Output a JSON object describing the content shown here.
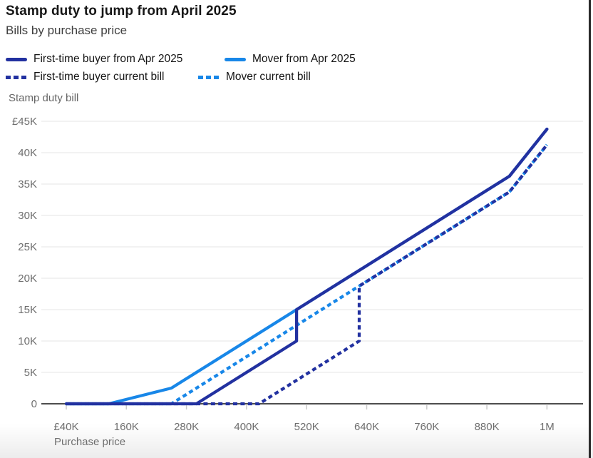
{
  "header": {
    "title": "Stamp duty to jump from April 2025",
    "subtitle": "Bills by purchase price"
  },
  "legend": [
    {
      "label": "First-time buyer from Apr 2025",
      "style": "solid",
      "color_key": "dark_blue"
    },
    {
      "label": "Mover from Apr 2025",
      "style": "solid",
      "color_key": "light_blue"
    },
    {
      "label": "First-time buyer current bill",
      "style": "dotted",
      "color_key": "dark_blue"
    },
    {
      "label": "Mover current bill",
      "style": "dotted",
      "color_key": "light_blue"
    }
  ],
  "colors": {
    "dark_blue": "#2231a0",
    "light_blue": "#1887e8",
    "grid": "#e6e6e6",
    "zero_axis": "#4d4d4d",
    "tick": "#c9c9c9",
    "axis_text": "#6e6e6e",
    "title_text": "#161616",
    "subtitle_text": "#3f3f3f",
    "window_border": "#2b2b2b"
  },
  "chart_data": {
    "type": "line",
    "title": "Stamp duty to jump from April 2025",
    "subtitle": "Bills by purchase price",
    "xlabel": "Purchase price",
    "ylabel": "Stamp duty bill",
    "x_unit": "GBP thousands (purchase price)",
    "y_unit": "GBP thousands (stamp duty bill)",
    "xlim": [
      40,
      1000
    ],
    "ylim": [
      0,
      45
    ],
    "grid": "horizontal",
    "legend_position": "top",
    "x_ticks": [
      {
        "value": 40,
        "label": "£40K"
      },
      {
        "value": 160,
        "label": "160K"
      },
      {
        "value": 280,
        "label": "280K"
      },
      {
        "value": 400,
        "label": "400K"
      },
      {
        "value": 520,
        "label": "520K"
      },
      {
        "value": 640,
        "label": "640K"
      },
      {
        "value": 760,
        "label": "760K"
      },
      {
        "value": 880,
        "label": "880K"
      },
      {
        "value": 1000,
        "label": "1M"
      }
    ],
    "y_ticks": [
      {
        "value": 0,
        "label": "0"
      },
      {
        "value": 5,
        "label": "5K"
      },
      {
        "value": 10,
        "label": "10K"
      },
      {
        "value": 15,
        "label": "15K"
      },
      {
        "value": 20,
        "label": "20K"
      },
      {
        "value": 25,
        "label": "25K"
      },
      {
        "value": 30,
        "label": "30K"
      },
      {
        "value": 35,
        "label": "35K"
      },
      {
        "value": 40,
        "label": "40K"
      },
      {
        "value": 45,
        "label": "£45K"
      }
    ],
    "series": [
      {
        "name": "Mover current bill",
        "style": "dotted",
        "color_key": "light_blue",
        "dash_offset": 0,
        "points": [
          [
            40,
            0
          ],
          [
            250,
            0
          ],
          [
            925,
            33.75
          ],
          [
            1000,
            41.25
          ]
        ]
      },
      {
        "name": "First-time buyer current bill",
        "style": "dotted",
        "color_key": "dark_blue",
        "dash_offset": 5.2,
        "points": [
          [
            40,
            0
          ],
          [
            425,
            0
          ],
          [
            625,
            10
          ],
          [
            625,
            18.75
          ],
          [
            925,
            33.75
          ],
          [
            1000,
            41.25
          ]
        ]
      },
      {
        "name": "Mover from Apr 2025",
        "style": "solid",
        "color_key": "light_blue",
        "points": [
          [
            40,
            0
          ],
          [
            125,
            0
          ],
          [
            250,
            2.5
          ],
          [
            925,
            36.25
          ],
          [
            1000,
            43.75
          ]
        ]
      },
      {
        "name": "First-time buyer from Apr 2025",
        "style": "solid",
        "color_key": "dark_blue",
        "points": [
          [
            40,
            0
          ],
          [
            300,
            0
          ],
          [
            500,
            10
          ],
          [
            500,
            15
          ],
          [
            925,
            36.25
          ],
          [
            1000,
            43.75
          ]
        ]
      }
    ]
  }
}
